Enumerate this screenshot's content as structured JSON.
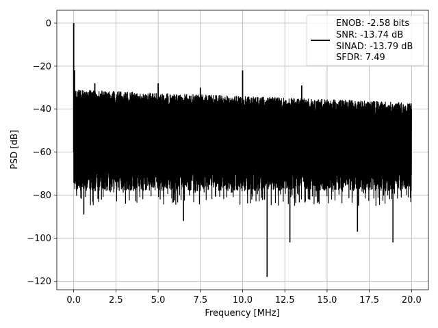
{
  "chart_data": {
    "type": "line",
    "title": "",
    "xlabel": "Frequency [MHz]",
    "ylabel": "PSD [dB]",
    "xlim": [
      -1.0,
      21.0
    ],
    "ylim": [
      -124.0,
      6.0
    ],
    "xticks": [
      0.0,
      2.5,
      5.0,
      7.5,
      10.0,
      12.5,
      15.0,
      17.5,
      20.0
    ],
    "xtick_labels": [
      "0.0",
      "2.5",
      "5.0",
      "7.5",
      "10.0",
      "12.5",
      "15.0",
      "17.5",
      "20.0"
    ],
    "yticks": [
      0,
      -20,
      -40,
      -60,
      -80,
      -100,
      -120
    ],
    "ytick_labels": [
      "0",
      "−20",
      "−40",
      "−60",
      "−80",
      "−100",
      "−120"
    ],
    "grid": true,
    "legend_position": "top-right",
    "line_color": "#000000",
    "legend": [
      "ENOB: -2.58 bits",
      "SNR: -13.74 dB",
      "SINAD: -13.79 dB",
      "SFDR: 7.49"
    ],
    "series": [
      {
        "name": "ENOB: -2.58 bits\nSNR: -13.74 dB\nSINAD: -13.79 dB\nSFDR: 7.49",
        "noise_band": {
          "x_start": 0.0,
          "x_end": 20.0,
          "upper_start": -31,
          "upper_end": -37,
          "lower_typical": -68,
          "lower_dips": -85
        },
        "peaks": [
          {
            "x": 0.0,
            "y": 0
          },
          {
            "x": 0.05,
            "y": -22
          },
          {
            "x": 1.25,
            "y": -28
          },
          {
            "x": 5.0,
            "y": -28
          },
          {
            "x": 7.5,
            "y": -30
          },
          {
            "x": 10.0,
            "y": -22
          },
          {
            "x": 13.5,
            "y": -29
          }
        ],
        "dips": [
          {
            "x": 0.6,
            "y": -89
          },
          {
            "x": 6.5,
            "y": -92
          },
          {
            "x": 11.45,
            "y": -118
          },
          {
            "x": 12.8,
            "y": -102
          },
          {
            "x": 16.8,
            "y": -97
          },
          {
            "x": 18.9,
            "y": -102
          }
        ]
      }
    ]
  }
}
